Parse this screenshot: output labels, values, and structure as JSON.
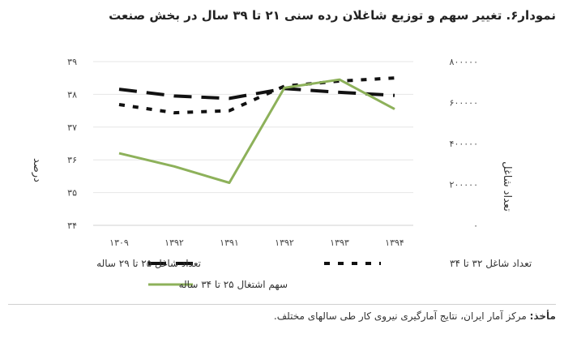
{
  "title": "نمودار۶. تغییر سهم و توزیع شاغلان رده سنی ۲۱ تا ۳۹ سال در بخش صنعت",
  "source_label": "مأخذ:",
  "source_text": " مرکز آمار ایران، نتایج آمارگیری نیروی کار طی سالهای مختلف.",
  "chart_data": {
    "type": "line",
    "categories": [
      "۱۳۰۹",
      "۱۳۹۲",
      "۱۳۹۱",
      "۱۳۹۲",
      "۱۳۹۳",
      "۱۳۹۴"
    ],
    "left_axis": {
      "label": "درصد",
      "ticks": [
        "۳۴",
        "۳۵",
        "۳۶",
        "۳۷",
        "۳۸",
        "۳۹"
      ],
      "range": [
        34,
        39
      ]
    },
    "right_axis": {
      "label": "تعداد شاغل",
      "ticks": [
        "۰",
        "۲۰۰۰۰۰",
        "۴۰۰۰۰۰",
        "۶۰۰۰۰۰",
        "۸۰۰۰۰۰"
      ],
      "range": [
        0,
        800000
      ]
    },
    "series": [
      {
        "name": "تعداد شاغل ۲۵ تا ۲۹ ساله",
        "axis": "right",
        "style": "dash",
        "color": "#111111",
        "values": [
          665000,
          632000,
          620000,
          668000,
          650000,
          635000
        ]
      },
      {
        "name": "تعداد شاغل ۳۲ تا ۳۴",
        "axis": "right",
        "style": "dot",
        "color": "#111111",
        "values": [
          590000,
          550000,
          560000,
          680000,
          705000,
          720000
        ]
      },
      {
        "name": "سهم اشتغال ۲۵ تا ۳۴ ساله",
        "axis": "left",
        "style": "solid",
        "color": "#8db15a",
        "values": [
          36.2,
          35.8,
          35.3,
          38.2,
          38.45,
          37.55
        ]
      }
    ],
    "grid": "horizontal",
    "legend_position": "bottom"
  }
}
